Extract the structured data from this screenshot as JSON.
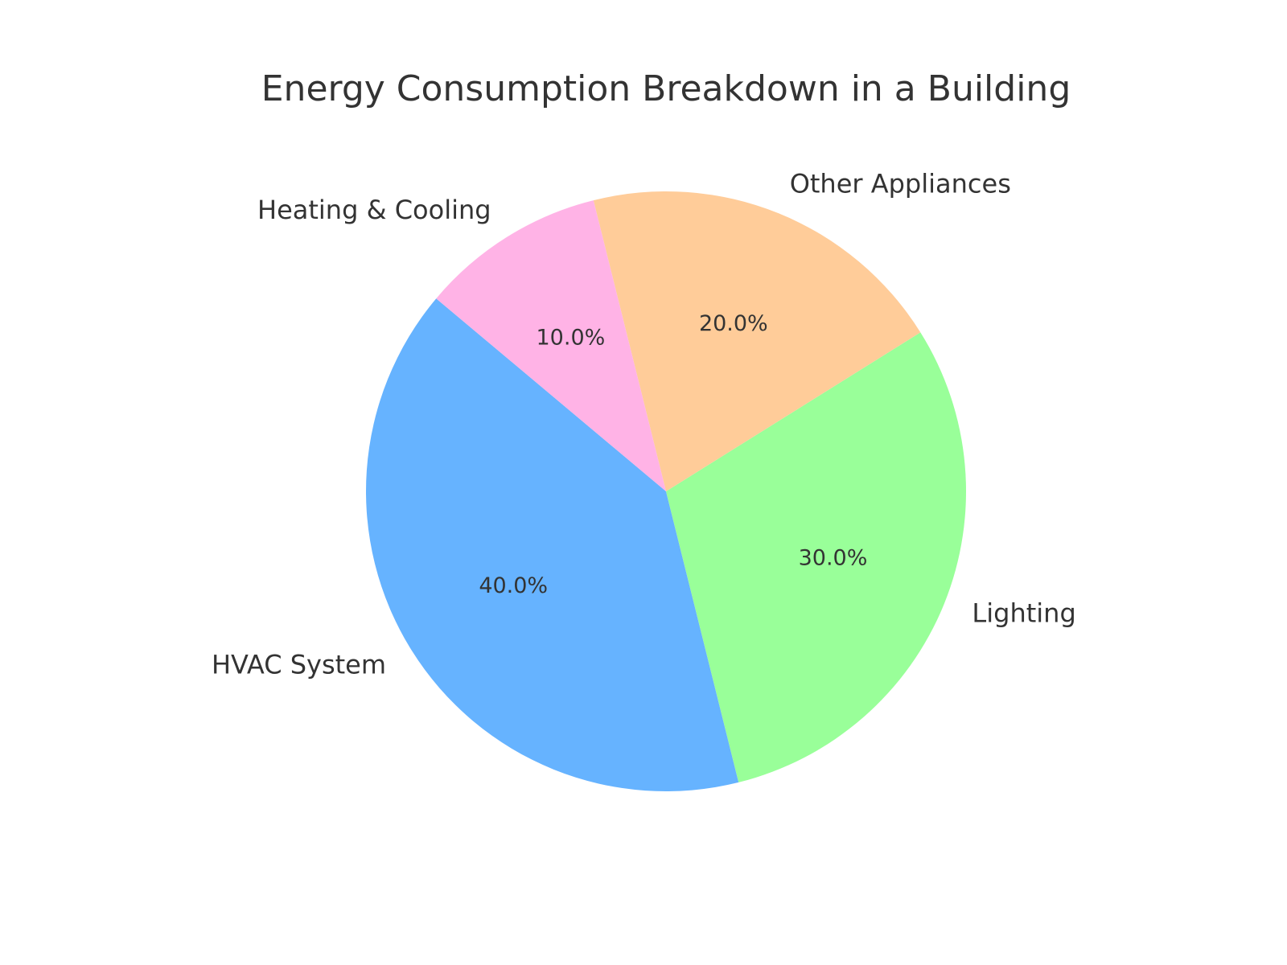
{
  "chart_data": {
    "type": "pie",
    "title": "Energy Consumption Breakdown in a Building",
    "categories": [
      "HVAC System",
      "Lighting",
      "Other Appliances",
      "Heating & Cooling"
    ],
    "values": [
      40,
      30,
      20,
      10
    ],
    "value_labels": [
      "40.0%",
      "30.0%",
      "20.0%",
      "10.0%"
    ],
    "colors": [
      "#66b3ff",
      "#99ff99",
      "#ffcc99",
      "#ffb3e6"
    ]
  }
}
